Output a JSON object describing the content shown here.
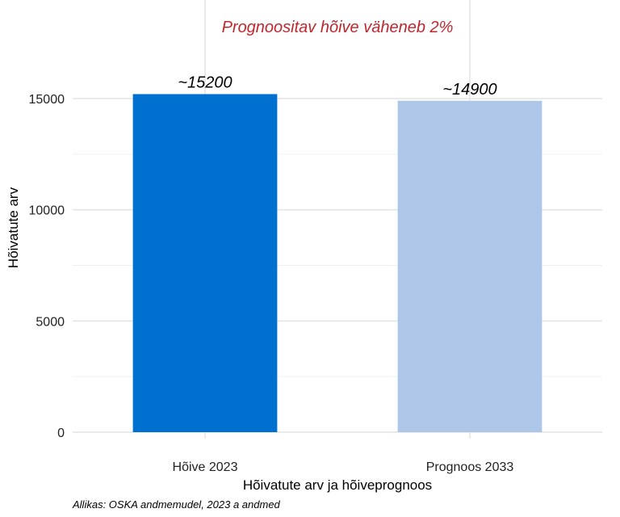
{
  "chart_data": {
    "type": "bar",
    "title": "Prognoositav hõive väheneb 2%",
    "title_color": "#c0272d",
    "xlabel": "Hõivatute arv ja hõiveprognoos",
    "ylabel": "Hõivatute arv",
    "categories": [
      "Hõive 2023",
      "Prognoos 2033"
    ],
    "values": [
      15200,
      14900
    ],
    "data_labels": [
      "~15200",
      "~14900"
    ],
    "bar_colors": [
      "#0070d0",
      "#aec7e8"
    ],
    "ylim": [
      0,
      16700
    ],
    "yticks": [
      0,
      5000,
      10000,
      15000
    ],
    "ytick_labels": [
      "0",
      "5000",
      "10000",
      "15000"
    ],
    "grid": true,
    "caption": "Allikas: OSKA andmemudel, 2023 a andmed"
  }
}
